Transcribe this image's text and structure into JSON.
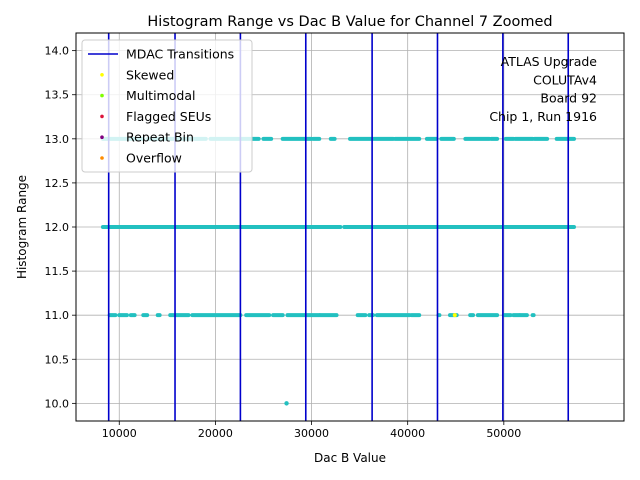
{
  "chart_data": {
    "type": "scatter",
    "title": "Histogram Range vs Dac B Value for Channel 7 Zoomed",
    "xlabel": "Dac B Value",
    "ylabel": "Histogram Range",
    "xlim": [
      5500,
      62500
    ],
    "ylim": [
      9.8,
      14.2
    ],
    "xticks": [
      10000,
      20000,
      30000,
      40000,
      50000
    ],
    "xtick_labels": [
      "10000",
      "20000",
      "30000",
      "40000",
      "50000"
    ],
    "yticks": [
      10.0,
      10.5,
      11.0,
      11.5,
      12.0,
      12.5,
      13.0,
      13.5,
      14.0
    ],
    "ytick_labels": [
      "10.0",
      "10.5",
      "11.0",
      "11.5",
      "12.0",
      "12.5",
      "13.0",
      "13.5",
      "14.0"
    ],
    "grid": true,
    "legend_position": "top-left",
    "annotation": [
      "ATLAS Upgrade",
      "COLUTAv4",
      "Board 92",
      "Chip 1, Run 1916"
    ],
    "mdac_transitions": [
      8900,
      15800,
      22600,
      29400,
      36300,
      43100,
      49900,
      56700
    ],
    "legend": [
      {
        "name": "MDAC Transitions",
        "kind": "line",
        "color": "#0000cc"
      },
      {
        "name": "Skewed",
        "kind": "dot",
        "color": "#ffff00"
      },
      {
        "name": "Multimodal",
        "kind": "dot",
        "color": "#7fff00"
      },
      {
        "name": "Flagged SEUs",
        "kind": "dot",
        "color": "#dc143c"
      },
      {
        "name": "Repeat Bin",
        "kind": "dot",
        "color": "#800080"
      },
      {
        "name": "Overflow",
        "kind": "dot",
        "color": "#ff8c00"
      }
    ],
    "point_color": "#22c0c0",
    "series": [
      {
        "y": 12.0,
        "segments": [
          [
            8300,
            33000
          ],
          [
            33400,
            57300
          ]
        ]
      },
      {
        "y": 13.0,
        "segments": [
          [
            8300,
            12500
          ],
          [
            13000,
            19000
          ],
          [
            19500,
            24500
          ],
          [
            25000,
            25800
          ],
          [
            27000,
            30000
          ],
          [
            30200,
            30800
          ],
          [
            32000,
            32400
          ],
          [
            34000,
            38500
          ],
          [
            38700,
            41200
          ],
          [
            42000,
            43000
          ],
          [
            43500,
            44800
          ],
          [
            46000,
            48500
          ],
          [
            48700,
            49300
          ],
          [
            50200,
            51000
          ],
          [
            51200,
            53000
          ],
          [
            53200,
            54500
          ],
          [
            55500,
            57300
          ]
        ]
      },
      {
        "y": 11.0,
        "segments": [
          [
            9000,
            9600
          ],
          [
            10000,
            10800
          ],
          [
            11200,
            11600
          ],
          [
            12500,
            12900
          ],
          [
            14000,
            14200
          ],
          [
            15300,
            17200
          ],
          [
            17600,
            22600
          ],
          [
            23200,
            25600
          ],
          [
            26000,
            27000
          ],
          [
            27500,
            30800
          ],
          [
            30900,
            32600
          ],
          [
            34800,
            35600
          ],
          [
            36000,
            36400
          ],
          [
            36800,
            40200
          ],
          [
            40400,
            41200
          ],
          [
            43200,
            43300
          ],
          [
            44400,
            45100
          ],
          [
            46500,
            46800
          ],
          [
            47300,
            49300
          ],
          [
            50000,
            50700
          ],
          [
            51000,
            51600
          ],
          [
            51700,
            52400
          ],
          [
            53000,
            53100
          ]
        ]
      },
      {
        "y": 10.0,
        "points": [
          27400
        ]
      }
    ],
    "flagged_points": [
      {
        "x": 44900,
        "y": 11.0,
        "color": "#ffff00"
      }
    ]
  }
}
